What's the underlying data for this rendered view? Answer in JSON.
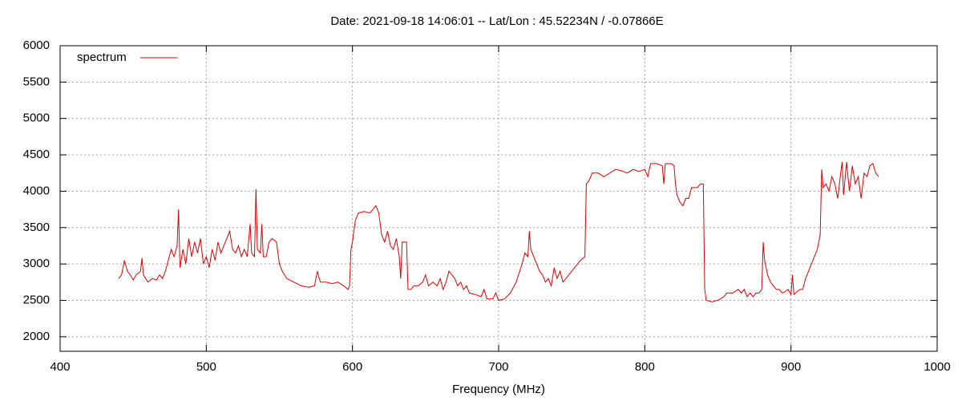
{
  "chart_data": {
    "type": "line",
    "title": "Date: 2021-09-18 14:06:01  --  Lat/Lon : 45.52234N / -0.07866E",
    "xlabel": "Frequency (MHz)",
    "x": [
      440,
      442,
      444,
      446,
      448,
      450,
      452,
      455,
      456,
      457,
      460,
      463,
      466,
      468,
      470,
      472,
      474,
      476,
      478,
      480,
      481,
      482,
      484,
      486,
      488,
      490,
      492,
      494,
      496,
      498,
      500,
      502,
      504,
      506,
      508,
      510,
      512,
      514,
      516,
      518,
      520,
      522,
      524,
      526,
      528,
      530,
      531,
      533,
      534,
      535,
      537,
      538,
      539,
      541,
      543,
      545,
      548,
      550,
      552,
      555,
      560,
      565,
      570,
      574,
      576,
      578,
      582,
      586,
      590,
      594,
      597,
      598,
      599,
      600,
      602,
      604,
      608,
      612,
      614,
      616,
      618,
      620,
      622,
      624,
      626,
      628,
      630,
      632,
      633,
      634,
      636,
      637,
      638,
      640,
      642,
      645,
      648,
      650,
      652,
      655,
      658,
      660,
      662,
      664,
      666,
      668,
      670,
      672,
      674,
      676,
      678,
      680,
      684,
      688,
      690,
      692,
      696,
      698,
      700,
      704,
      708,
      712,
      716,
      718,
      720,
      721,
      722,
      724,
      726,
      728,
      730,
      732,
      734,
      736,
      738,
      740,
      742,
      744,
      746,
      748,
      750,
      752,
      756,
      759,
      760,
      762,
      764,
      768,
      772,
      776,
      780,
      784,
      788,
      792,
      796,
      800,
      802,
      804,
      808,
      812,
      813,
      814,
      818,
      820,
      821,
      822,
      824,
      826,
      828,
      830,
      832,
      836,
      838,
      840,
      841,
      842,
      846,
      850,
      854,
      856,
      860,
      864,
      866,
      868,
      870,
      872,
      874,
      876,
      878,
      880,
      881,
      882,
      884,
      886,
      888,
      890,
      892,
      894,
      896,
      898,
      900,
      901,
      902,
      906,
      908,
      910,
      914,
      918,
      920,
      921,
      922,
      924,
      926,
      928,
      930,
      932,
      934,
      935,
      936,
      938,
      940,
      942,
      944,
      946,
      948,
      950,
      952,
      954,
      956,
      958,
      960
    ],
    "series": [
      {
        "name": "spectrum",
        "color": "#dd0000",
        "values": [
          2800,
          2850,
          3050,
          2900,
          2850,
          2780,
          2850,
          2900,
          3080,
          2850,
          2750,
          2800,
          2780,
          2850,
          2800,
          2900,
          3050,
          3200,
          3100,
          3250,
          3750,
          2950,
          3200,
          3000,
          3350,
          3100,
          3300,
          3150,
          3350,
          3000,
          3100,
          2950,
          3200,
          3050,
          3300,
          3150,
          3250,
          3350,
          3450,
          3200,
          3150,
          3250,
          3100,
          3200,
          3100,
          3550,
          3150,
          3100,
          4030,
          3200,
          3150,
          3550,
          3100,
          3100,
          3300,
          3350,
          3300,
          3000,
          2900,
          2800,
          2750,
          2700,
          2680,
          2700,
          2900,
          2750,
          2750,
          2730,
          2750,
          2700,
          2650,
          2700,
          3200,
          3300,
          3600,
          3700,
          3720,
          3700,
          3750,
          3800,
          3700,
          3400,
          3300,
          3450,
          3250,
          3200,
          3350,
          3100,
          2800,
          3300,
          3300,
          3300,
          2650,
          2650,
          2700,
          2700,
          2750,
          2850,
          2700,
          2750,
          2700,
          2800,
          2650,
          2750,
          2900,
          2850,
          2800,
          2700,
          2750,
          2650,
          2700,
          2600,
          2580,
          2550,
          2650,
          2520,
          2520,
          2600,
          2500,
          2520,
          2600,
          2750,
          3000,
          3150,
          3100,
          3450,
          3200,
          3100,
          3000,
          2900,
          2850,
          2750,
          2800,
          2700,
          2950,
          2800,
          2900,
          2750,
          2800,
          2850,
          2900,
          2950,
          3050,
          3100,
          4100,
          4150,
          4250,
          4250,
          4200,
          4250,
          4300,
          4280,
          4250,
          4300,
          4270,
          4300,
          4200,
          4380,
          4380,
          4350,
          4100,
          4380,
          4380,
          4350,
          4100,
          3950,
          3850,
          3800,
          3900,
          3900,
          4050,
          4050,
          4100,
          4100,
          2650,
          2500,
          2480,
          2500,
          2550,
          2600,
          2600,
          2650,
          2600,
          2650,
          2550,
          2600,
          2550,
          2600,
          2600,
          2650,
          3300,
          3050,
          2850,
          2750,
          2700,
          2650,
          2650,
          2600,
          2620,
          2650,
          2580,
          2850,
          2580,
          2650,
          2650,
          2800,
          3000,
          3200,
          3400,
          4300,
          4050,
          4100,
          4000,
          4200,
          4100,
          3900,
          4250,
          4400,
          3950,
          4400,
          4000,
          4350,
          4100,
          4200,
          3900,
          4250,
          4200,
          4350,
          4380,
          4250,
          4200
        ]
      }
    ],
    "xlim": [
      400,
      1000
    ],
    "xticks": [
      400,
      500,
      600,
      700,
      800,
      900,
      1000
    ],
    "ylim": [
      1800,
      6000
    ],
    "yticks": [
      2000,
      2500,
      3000,
      3500,
      4000,
      4500,
      5000,
      5500,
      6000
    ],
    "grid": true,
    "legend": "top-left"
  }
}
